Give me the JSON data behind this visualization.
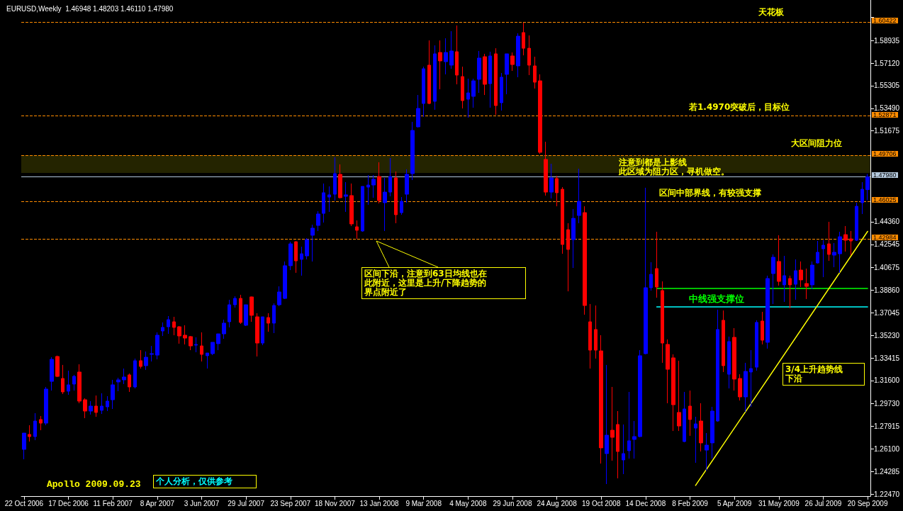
{
  "chart_data": {
    "type": "candlestick",
    "title": "EURUSD,Weekly  1.46948 1.48203 1.46110 1.47980",
    "categories": [
      "22 Oct 2006",
      null,
      null,
      null,
      null,
      null,
      null,
      null,
      "17 Dec 2006",
      null,
      null,
      null,
      null,
      null,
      null,
      null,
      "11 Feb 2007",
      null,
      null,
      null,
      null,
      null,
      null,
      null,
      "8 Apr 2007",
      null,
      null,
      null,
      null,
      null,
      null,
      null,
      "3 Jun 2007",
      null,
      null,
      null,
      null,
      null,
      null,
      null,
      "29 Jul 2007",
      null,
      null,
      null,
      null,
      null,
      null,
      null,
      "23 Sep 2007",
      null,
      null,
      null,
      null,
      null,
      null,
      null,
      "18 Nov 2007",
      null,
      null,
      null,
      null,
      null,
      null,
      null,
      "13 Jan 2008",
      null,
      null,
      null,
      null,
      null,
      null,
      null,
      "9 Mar 2008",
      null,
      null,
      null,
      null,
      null,
      null,
      null,
      "4 May 2008",
      null,
      null,
      null,
      null,
      null,
      null,
      null,
      "29 Jun 2008",
      null,
      null,
      null,
      null,
      null,
      null,
      null,
      "24 Aug 2008",
      null,
      null,
      null,
      null,
      null,
      null,
      null,
      "19 Oct 2008",
      null,
      null,
      null,
      null,
      null,
      null,
      null,
      "14 Dec 2008",
      null,
      null,
      null,
      null,
      null,
      null,
      null,
      "8 Feb 2009",
      null,
      null,
      null,
      null,
      null,
      null,
      null,
      "5 Apr 2009",
      null,
      null,
      null,
      null,
      null,
      null,
      null,
      "31 May 2009",
      null,
      null,
      null,
      null,
      null,
      null,
      null,
      "26 Jul 2009",
      null,
      null,
      null,
      null,
      null,
      null,
      null,
      "20 Sep 2009"
    ],
    "ohlc": [
      [
        1.2606,
        1.2737,
        1.2526,
        1.2737
      ],
      [
        1.2726,
        1.28,
        1.2669,
        1.2709
      ],
      [
        1.2709,
        1.2897,
        1.268,
        1.2834
      ],
      [
        1.2846,
        1.2874,
        1.276,
        1.2817
      ],
      [
        1.2817,
        1.3108,
        1.28,
        1.3091
      ],
      [
        1.3153,
        1.3347,
        1.3079,
        1.333
      ],
      [
        1.3353,
        1.336,
        1.3188,
        1.3193
      ],
      [
        1.3176,
        1.3285,
        1.3051,
        1.3068
      ],
      [
        1.3074,
        1.3239,
        1.3045,
        1.3125
      ],
      [
        1.3131,
        1.3205,
        1.3079,
        1.3193
      ],
      [
        1.3228,
        1.329,
        1.2977,
        1.2994
      ],
      [
        1.3005,
        1.3017,
        1.2857,
        1.2914
      ],
      [
        1.2914,
        1.2994,
        1.2886,
        1.2954
      ],
      [
        1.2954,
        1.3039,
        1.2868,
        1.2903
      ],
      [
        1.292,
        1.3057,
        1.2891,
        1.2954
      ],
      [
        1.2948,
        1.3034,
        1.2914,
        1.2994
      ],
      [
        1.3005,
        1.3165,
        1.2931,
        1.3125
      ],
      [
        1.3148,
        1.3182,
        1.3074,
        1.3165
      ],
      [
        1.3165,
        1.3256,
        1.3131,
        1.3188
      ],
      [
        1.3205,
        1.3216,
        1.3068,
        1.3108
      ],
      [
        1.3108,
        1.3336,
        1.3096,
        1.3319
      ],
      [
        1.3319,
        1.3404,
        1.3256,
        1.3273
      ],
      [
        1.3279,
        1.3393,
        1.3245,
        1.3347
      ],
      [
        1.337,
        1.3438,
        1.3313,
        1.3376
      ],
      [
        1.3364,
        1.3547,
        1.333,
        1.3524
      ],
      [
        1.3558,
        1.3627,
        1.3518,
        1.3587
      ],
      [
        1.3592,
        1.3678,
        1.3535,
        1.3649
      ],
      [
        1.3632,
        1.3672,
        1.3524,
        1.3587
      ],
      [
        1.3592,
        1.3598,
        1.3456,
        1.3518
      ],
      [
        1.3524,
        1.3604,
        1.345,
        1.3501
      ],
      [
        1.3513,
        1.3518,
        1.3404,
        1.3438
      ],
      [
        1.3444,
        1.3507,
        1.3387,
        1.345
      ],
      [
        1.3438,
        1.3547,
        1.3313,
        1.337
      ],
      [
        1.3359,
        1.3381,
        1.3256,
        1.3381
      ],
      [
        1.3376,
        1.3467,
        1.3364,
        1.3467
      ],
      [
        1.3456,
        1.3535,
        1.3404,
        1.3535
      ],
      [
        1.3535,
        1.3649,
        1.3495,
        1.3621
      ],
      [
        1.3632,
        1.3809,
        1.3587,
        1.3769
      ],
      [
        1.3769,
        1.3837,
        1.3746,
        1.382
      ],
      [
        1.382,
        1.3849,
        1.3615,
        1.3627
      ],
      [
        1.3604,
        1.3769,
        1.3598,
        1.3769
      ],
      [
        1.3832,
        1.3835,
        1.3632,
        1.3684
      ],
      [
        1.3672,
        1.3701,
        1.3353,
        1.3461
      ],
      [
        1.3461,
        1.3672,
        1.3444,
        1.3672
      ],
      [
        1.3666,
        1.3701,
        1.3552,
        1.3621
      ],
      [
        1.3621,
        1.378,
        1.3541,
        1.3763
      ],
      [
        1.3769,
        1.3917,
        1.3758,
        1.3872
      ],
      [
        1.382,
        1.4117,
        1.3815,
        1.4083
      ],
      [
        1.4083,
        1.4276,
        1.4048,
        1.4259
      ],
      [
        1.4276,
        1.428,
        1.4026,
        1.4122
      ],
      [
        1.4134,
        1.4236,
        1.4003,
        1.4179
      ],
      [
        1.4162,
        1.4305,
        1.4134,
        1.4293
      ],
      [
        1.4328,
        1.4413,
        1.4117,
        1.4385
      ],
      [
        1.4407,
        1.4521,
        1.4362,
        1.4499
      ],
      [
        1.4504,
        1.4744,
        1.443,
        1.467
      ],
      [
        1.4635,
        1.4721,
        1.4516,
        1.4653
      ],
      [
        1.4658,
        1.4955,
        1.4607,
        1.4824
      ],
      [
        1.4818,
        1.4898,
        1.4624,
        1.463
      ],
      [
        1.4641,
        1.4755,
        1.4516,
        1.4653
      ],
      [
        1.4647,
        1.4744,
        1.4402,
        1.4419
      ],
      [
        1.4396,
        1.4447,
        1.4299,
        1.4368
      ],
      [
        1.4362,
        1.4721,
        1.4356,
        1.4721
      ],
      [
        1.4715,
        1.4812,
        1.4573,
        1.4732
      ],
      [
        1.4732,
        1.4812,
        1.463,
        1.4778
      ],
      [
        1.4801,
        1.4915,
        1.4584,
        1.4607
      ],
      [
        1.459,
        1.4789,
        1.4362,
        1.4675
      ],
      [
        1.4675,
        1.4949,
        1.4641,
        1.4801
      ],
      [
        1.4789,
        1.4841,
        1.4425,
        1.4493
      ],
      [
        1.451,
        1.4635,
        1.4493,
        1.4601
      ],
      [
        1.4658,
        1.4858,
        1.459,
        1.4818
      ],
      [
        1.4824,
        1.524,
        1.4772,
        1.5171
      ],
      [
        1.52,
        1.5456,
        1.5194,
        1.5348
      ],
      [
        1.5388,
        1.5684,
        1.528,
        1.5667
      ],
      [
        1.5696,
        1.5895,
        1.5382,
        1.5388
      ],
      [
        1.5405,
        1.5855,
        1.5337,
        1.5787
      ],
      [
        1.5798,
        1.5895,
        1.5502,
        1.573
      ],
      [
        1.5724,
        1.5912,
        1.5622,
        1.5798
      ],
      [
        1.5696,
        1.5969,
        1.5667,
        1.581
      ],
      [
        1.5804,
        1.6015,
        1.5542,
        1.5616
      ],
      [
        1.5604,
        1.5684,
        1.5348,
        1.5411
      ],
      [
        1.5422,
        1.5587,
        1.5274,
        1.5473
      ],
      [
        1.5445,
        1.5587,
        1.5354,
        1.557
      ],
      [
        1.5582,
        1.581,
        1.5473,
        1.5753
      ],
      [
        1.5764,
        1.5787,
        1.5456,
        1.5542
      ],
      [
        1.5547,
        1.5804,
        1.5354,
        1.577
      ],
      [
        1.5787,
        1.5832,
        1.5297,
        1.5371
      ],
      [
        1.5394,
        1.5633,
        1.5331,
        1.5599
      ],
      [
        1.5622,
        1.5787,
        1.5462,
        1.5787
      ],
      [
        1.577,
        1.5798,
        1.565,
        1.5701
      ],
      [
        1.569,
        1.5952,
        1.5599,
        1.5929
      ],
      [
        1.5958,
        1.6038,
        1.5775,
        1.5832
      ],
      [
        1.5832,
        1.5935,
        1.5616,
        1.5696
      ],
      [
        1.569,
        1.5764,
        1.5508,
        1.5559
      ],
      [
        1.557,
        1.5622,
        1.4983,
        1.4995
      ],
      [
        1.4938,
        1.508,
        1.4647,
        1.4675
      ],
      [
        1.4675,
        1.4903,
        1.4624,
        1.4789
      ],
      [
        1.4784,
        1.4806,
        1.4561,
        1.467
      ],
      [
        1.4698,
        1.4715,
        1.4179,
        1.4254
      ],
      [
        1.4373,
        1.4425,
        1.3877,
        1.4214
      ],
      [
        1.4293,
        1.4539,
        1.4065,
        1.4464
      ],
      [
        1.4487,
        1.4863,
        1.4425,
        1.4601
      ],
      [
        1.451,
        1.4561,
        1.3689,
        1.3763
      ],
      [
        1.3632,
        1.3775,
        1.3256,
        1.3404
      ],
      [
        1.357,
        1.3763,
        1.3336,
        1.3404
      ],
      [
        1.3398,
        1.3524,
        1.2492,
        1.2618
      ],
      [
        1.2572,
        1.3285,
        1.2327,
        1.272
      ],
      [
        1.276,
        1.3108,
        1.2515,
        1.2703
      ],
      [
        1.2806,
        1.2914,
        1.2373,
        1.2589
      ],
      [
        1.2521,
        1.2806,
        1.2407,
        1.2572
      ],
      [
        1.2595,
        1.3068,
        1.2532,
        1.2675
      ],
      [
        1.2686,
        1.2834,
        1.2532,
        1.2709
      ],
      [
        1.2709,
        1.3404,
        1.2703,
        1.3359
      ],
      [
        1.3376,
        1.471,
        1.337,
        1.3906
      ],
      [
        1.3906,
        1.4111,
        1.3883,
        1.4014
      ],
      [
        1.406,
        1.4356,
        1.3826,
        1.3912
      ],
      [
        1.3883,
        1.3957,
        1.3302,
        1.3461
      ],
      [
        1.345,
        1.349,
        1.2977,
        1.325
      ],
      [
        1.3342,
        1.337,
        1.2754,
        1.2965
      ],
      [
        1.2903,
        1.3319,
        1.2754,
        1.2794
      ],
      [
        1.2669,
        1.3068,
        1.2663,
        1.2931
      ],
      [
        1.2954,
        1.3079,
        1.2715,
        1.2846
      ],
      [
        1.2777,
        1.2868,
        1.2498,
        1.2811
      ],
      [
        1.2834,
        1.2977,
        1.2589,
        1.2658
      ],
      [
        1.26,
        1.2737,
        1.2435,
        1.264
      ],
      [
        1.2658,
        1.2948,
        1.2532,
        1.2914
      ],
      [
        1.2834,
        1.3729,
        1.2828,
        1.357
      ],
      [
        1.3644,
        1.3723,
        1.3228,
        1.3279
      ],
      [
        1.321,
        1.3513,
        1.3096,
        1.3473
      ],
      [
        1.3507,
        1.3581,
        1.3079,
        1.3171
      ],
      [
        1.3176,
        1.321,
        1.2999,
        1.3028
      ],
      [
        1.3028,
        1.3302,
        1.2908,
        1.3233
      ],
      [
        1.3228,
        1.3404,
        1.2948,
        1.3256
      ],
      [
        1.3267,
        1.3644,
        1.3239,
        1.3627
      ],
      [
        1.3638,
        1.3712,
        1.345,
        1.3484
      ],
      [
        1.3467,
        1.4003,
        1.3416,
        1.398
      ],
      [
        1.402,
        1.4174,
        1.3775,
        1.4151
      ],
      [
        1.4117,
        1.4328,
        1.3923,
        1.3957
      ],
      [
        1.3929,
        1.4162,
        1.3792,
        1.4003
      ],
      [
        1.398,
        1.4003,
        1.3741,
        1.3929
      ],
      [
        1.3934,
        1.4134,
        1.3809,
        1.4043
      ],
      [
        1.4048,
        1.4117,
        1.3912,
        1.3969
      ],
      [
        1.394,
        1.406,
        1.3815,
        1.3917
      ],
      [
        1.3929,
        1.4117,
        1.3894,
        1.4088
      ],
      [
        1.4105,
        1.4282,
        1.41,
        1.4191
      ],
      [
        1.4219,
        1.4288,
        1.3991,
        1.4248
      ],
      [
        1.4259,
        1.4436,
        1.4122,
        1.4174
      ],
      [
        1.4168,
        1.4265,
        1.4071,
        1.4191
      ],
      [
        1.4179,
        1.4356,
        1.4026,
        1.4316
      ],
      [
        1.4333,
        1.4402,
        1.4197,
        1.4288
      ],
      [
        1.4299,
        1.4362,
        1.4168,
        1.4282
      ],
      [
        1.4288,
        1.459,
        1.4282,
        1.4561
      ],
      [
        1.459,
        1.4755,
        1.4499,
        1.4698
      ],
      [
        1.46948,
        1.48203,
        1.4611,
        1.4798
      ]
    ],
    "colors": [
      "#0000ff",
      "#ff0000",
      "#0000ff",
      "#ff0000",
      "#0000ff",
      "#0000ff",
      "#ff0000",
      "#ff0000",
      "#0000ff",
      "#0000ff",
      "#ff0000",
      "#ff0000",
      "#0000ff",
      "#ff0000",
      "#0000ff",
      "#0000ff",
      "#0000ff",
      "#0000ff",
      "#0000ff",
      "#ff0000",
      "#0000ff",
      "#ff0000",
      "#0000ff",
      "#0000ff",
      "#0000ff",
      "#0000ff",
      "#0000ff",
      "#ff0000",
      "#ff0000",
      "#ff0000",
      "#ff0000",
      "#0000ff",
      "#ff0000",
      "#0000ff",
      "#0000ff",
      "#0000ff",
      "#0000ff",
      "#0000ff",
      "#0000ff",
      "#ff0000",
      "#0000ff",
      "#ff0000",
      "#ff0000",
      "#0000ff",
      "#ff0000",
      "#0000ff",
      "#0000ff",
      "#0000ff",
      "#0000ff",
      "#ff0000",
      "#0000ff",
      "#0000ff",
      "#0000ff",
      "#0000ff",
      "#0000ff",
      "#0000ff",
      "#0000ff",
      "#ff0000",
      "#0000ff",
      "#ff0000",
      "#ff0000",
      "#0000ff",
      "#0000ff",
      "#0000ff",
      "#ff0000",
      "#0000ff",
      "#0000ff",
      "#ff0000",
      "#0000ff",
      "#0000ff",
      "#0000ff",
      "#0000ff",
      "#0000ff",
      "#ff0000",
      "#0000ff",
      "#ff0000",
      "#0000ff",
      "#0000ff",
      "#ff0000",
      "#ff0000",
      "#0000ff",
      "#0000ff",
      "#0000ff",
      "#ff0000",
      "#0000ff",
      "#ff0000",
      "#0000ff",
      "#0000ff",
      "#ff0000",
      "#0000ff",
      "#ff0000",
      "#ff0000",
      "#ff0000",
      "#ff0000",
      "#ff0000",
      "#0000ff",
      "#ff0000",
      "#ff0000",
      "#ff0000",
      "#0000ff",
      "#0000ff",
      "#ff0000",
      "#ff0000",
      "#ff0000",
      "#ff0000",
      "#0000ff",
      "#ff0000",
      "#ff0000",
      "#0000ff",
      "#0000ff",
      "#0000ff",
      "#0000ff",
      "#0000ff",
      "#0000ff",
      "#ff0000",
      "#ff0000",
      "#ff0000",
      "#ff0000",
      "#ff0000",
      "#0000ff",
      "#ff0000",
      "#0000ff",
      "#ff0000",
      "#0000ff",
      "#0000ff",
      "#0000ff",
      "#ff0000",
      "#0000ff",
      "#ff0000",
      "#ff0000",
      "#0000ff",
      "#0000ff",
      "#0000ff",
      "#ff0000",
      "#0000ff",
      "#0000ff",
      "#ff0000",
      "#0000ff",
      "#ff0000",
      "#0000ff",
      "#ff0000",
      "#ff0000",
      "#0000ff",
      "#0000ff",
      "#0000ff",
      "#ff0000",
      "#0000ff",
      "#0000ff",
      "#ff0000",
      "#ff0000",
      "#0000ff",
      "#0000ff",
      "#0000ff"
    ],
    "series": [
      {
        "type": "line",
        "name": "中线强支撑位",
        "color": "#00ff00",
        "values": [
          null,
          null,
          null,
          null,
          null,
          null,
          null,
          null,
          null,
          null,
          null,
          null,
          null,
          null,
          null,
          null,
          null,
          null,
          null,
          null,
          null,
          null,
          null,
          null,
          null,
          null,
          null,
          null,
          null,
          null,
          null,
          null,
          null,
          null,
          null,
          null,
          null,
          null,
          null,
          null,
          null,
          null,
          null,
          null,
          null,
          null,
          null,
          null,
          null,
          null,
          null,
          null,
          null,
          null,
          null,
          null,
          null,
          null,
          null,
          null,
          null,
          null,
          null,
          null,
          null,
          null,
          null,
          null,
          null,
          null,
          null,
          null,
          null,
          null,
          null,
          null,
          null,
          null,
          null,
          null,
          null,
          null,
          null,
          null,
          null,
          null,
          null,
          null,
          null,
          null,
          null,
          null,
          null,
          null,
          null,
          null,
          null,
          null,
          null,
          null,
          null,
          null,
          null,
          null,
          null,
          null,
          null,
          null,
          null,
          null,
          null,
          null,
          null,
          null,
          1.39,
          null,
          null,
          null,
          null,
          null,
          null,
          null,
          null,
          null,
          null,
          null,
          null,
          null,
          null,
          null,
          null,
          null,
          null,
          null,
          null,
          null,
          null,
          null,
          null,
          null,
          null,
          null,
          null,
          null,
          null,
          null,
          null,
          null,
          null,
          null,
          null,
          null,
          1.39
        ]
      },
      {
        "type": "line",
        "color": "#00ffff",
        "values": [
          null,
          null,
          null,
          null,
          null,
          null,
          null,
          null,
          null,
          null,
          null,
          null,
          null,
          null,
          null,
          null,
          null,
          null,
          null,
          null,
          null,
          null,
          null,
          null,
          null,
          null,
          null,
          null,
          null,
          null,
          null,
          null,
          null,
          null,
          null,
          null,
          null,
          null,
          null,
          null,
          null,
          null,
          null,
          null,
          null,
          null,
          null,
          null,
          null,
          null,
          null,
          null,
          null,
          null,
          null,
          null,
          null,
          null,
          null,
          null,
          null,
          null,
          null,
          null,
          null,
          null,
          null,
          null,
          null,
          null,
          null,
          null,
          null,
          null,
          null,
          null,
          null,
          null,
          null,
          null,
          null,
          null,
          null,
          null,
          null,
          null,
          null,
          null,
          null,
          null,
          null,
          null,
          null,
          null,
          null,
          null,
          null,
          null,
          null,
          null,
          null,
          null,
          null,
          null,
          null,
          null,
          null,
          null,
          null,
          null,
          null,
          null,
          null,
          null,
          1.3752,
          null,
          null,
          null,
          null,
          null,
          null,
          null,
          null,
          null,
          null,
          null,
          null,
          null,
          null,
          null,
          null,
          null,
          null,
          null,
          null,
          null,
          null,
          null,
          null,
          null,
          null,
          null,
          null,
          null,
          null,
          null,
          null,
          null,
          null,
          null,
          null,
          null,
          1.3752
        ]
      },
      {
        "type": "line",
        "color": "#ffff00",
        "values": [
          null,
          null,
          null,
          null,
          null,
          null,
          null,
          null,
          null,
          null,
          null,
          null,
          null,
          null,
          null,
          null,
          null,
          null,
          null,
          null,
          null,
          null,
          null,
          null,
          null,
          null,
          null,
          null,
          null,
          null,
          null,
          null,
          null,
          null,
          null,
          null,
          null,
          null,
          null,
          null,
          null,
          null,
          null,
          null,
          null,
          null,
          null,
          null,
          null,
          null,
          null,
          null,
          null,
          null,
          null,
          null,
          null,
          null,
          null,
          null,
          null,
          null,
          null,
          null,
          null,
          null,
          null,
          null,
          null,
          null,
          null,
          null,
          null,
          null,
          null,
          null,
          null,
          null,
          null,
          null,
          null,
          null,
          null,
          null,
          null,
          null,
          null,
          null,
          null,
          null,
          null,
          null,
          null,
          null,
          null,
          null,
          null,
          null,
          null,
          null,
          null,
          null,
          null,
          null,
          null,
          null,
          null,
          null,
          null,
          null,
          null,
          null,
          null,
          null,
          null,
          null,
          null,
          null,
          null,
          null,
          null,
          1.2316,
          null,
          null,
          null,
          null,
          null,
          null,
          null,
          null,
          null,
          null,
          null,
          null,
          null,
          null,
          null,
          null,
          null,
          null,
          null,
          null,
          null,
          null,
          null,
          null,
          null,
          null,
          null,
          null,
          null,
          null,
          1.4359
        ]
      }
    ],
    "ylim": [
      1.223,
      1.622
    ],
    "yticks": [
      {
        "value": 1.2247,
        "label": "1.22470"
      },
      1.24285,
      {
        "value": 1.261,
        "label": "1.26100"
      },
      1.27915,
      {
        "value": 1.2973,
        "label": "1.29730"
      },
      {
        "value": 1.316,
        "label": "1.31600"
      },
      1.33415,
      {
        "value": 1.3523,
        "label": "1.35230"
      },
      1.37045,
      {
        "value": 1.3886,
        "label": "1.38860"
      },
      1.40675,
      1.42545,
      {
        "value": 1.4436,
        "label": "1.44360"
      },
      1.51675,
      {
        "value": 1.5349,
        "label": "1.53490"
      },
      1.55305,
      {
        "value": 1.5712,
        "label": "1.57120"
      },
      1.58935,
      {
        "value": 1.60805,
        "label": null
      }
    ],
    "ref_lines": [
      {
        "axis": "y",
        "value": 1.60422,
        "label": "1.60422",
        "color": "#ff8c00",
        "line_style": "dashed"
      },
      {
        "axis": "y",
        "value": 1.52871,
        "label": "1.52871",
        "color": "#ff8c00",
        "line_style": "dashed"
      },
      {
        "axis": "y",
        "value": 1.49706,
        "label": "1.49706",
        "color": "#ff8c00",
        "line_style": "dashed"
      },
      {
        "axis": "y",
        "value": 1.4798,
        "label": "1.47980",
        "color": "#b4c8dc",
        "line_style": "solid"
      },
      {
        "axis": "y",
        "value": 1.46025,
        "label": "1.46025",
        "color": "#ff8c00",
        "line_style": "dashed"
      },
      {
        "axis": "y",
        "value": 1.42984,
        "label": "1.42984",
        "color": "#ff8c00",
        "line_style": "dashed"
      }
    ],
    "bands": [
      {
        "axis": "y",
        "from": 1.4829,
        "to": 1.4972,
        "color": "#ffff00"
      }
    ],
    "annotations": [
      "区间下沿，注意到63日均线也在此附近，这里是上升/下降趋势的界点附近了",
      "3/4上升趋势线下沿",
      "Apollo 2009.09.23",
      "个人分析，仅供参考",
      "天花板",
      "若1.4970突破后，目标位",
      "大区间阻力位",
      "区间中部界线，有较强支撑",
      "注意到都是上影线",
      "此区域为阻力区，寻机做空。"
    ],
    "marker": "none",
    "legend": false
  }
}
